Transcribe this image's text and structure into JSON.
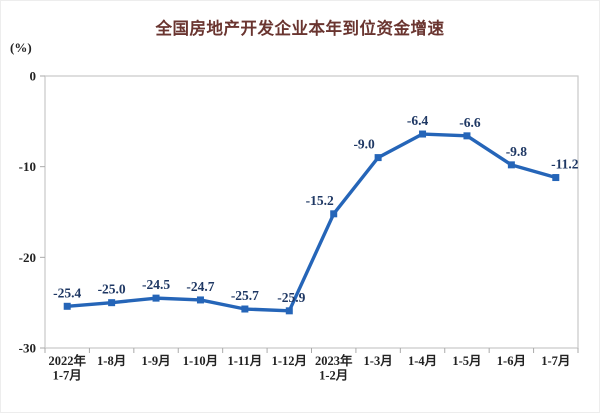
{
  "page": {
    "background": "#ffffff",
    "outer_border_color": "#ededed"
  },
  "chart_data": {
    "type": "line",
    "title": "全国房地产开发企业本年到位资金增速",
    "ylabel": "(%)",
    "categories": [
      [
        "2022年",
        "1-7月"
      ],
      [
        "1-8月"
      ],
      [
        "1-9月"
      ],
      [
        "1-10月"
      ],
      [
        "1-11月"
      ],
      [
        "1-12月"
      ],
      [
        "2023年",
        "1-2月"
      ],
      [
        "1-3月"
      ],
      [
        "1-4月"
      ],
      [
        "1-5月"
      ],
      [
        "1-6月"
      ],
      [
        "1-7月"
      ]
    ],
    "values": [
      -25.4,
      -25.0,
      -24.5,
      -24.7,
      -25.7,
      -25.9,
      -15.2,
      -9.0,
      -6.4,
      -6.6,
      -9.8,
      -11.2
    ],
    "data_labels": [
      "-25.4",
      "-25.0",
      "-24.5",
      "-24.7",
      "-25.7",
      "-25.9",
      "-15.2",
      "-9.0",
      "-6.4",
      "-6.6",
      "-9.8",
      "-11.2"
    ],
    "yticks": [
      0,
      -10,
      -20,
      -30
    ],
    "ylim": [
      -30,
      0
    ],
    "grid": false,
    "legend": "none",
    "marker": "square",
    "line_color": "#2565b8",
    "marker_color": "#2565b8",
    "data_label_color": "#1f3864",
    "axis_label_color": "#222222",
    "title_color": "#6a3530",
    "plot_border_color": "#c9c9c9",
    "tick_color": "#aaaaaa"
  }
}
